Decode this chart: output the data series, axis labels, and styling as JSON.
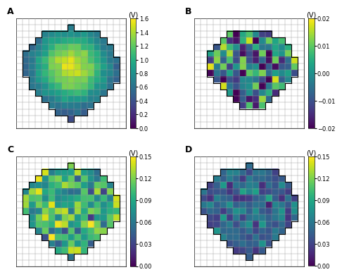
{
  "panel_labels": [
    "A",
    "B",
    "C",
    "D"
  ],
  "colorbar_labels": [
    "(V)",
    "(V)",
    "(V)",
    "(V)"
  ],
  "vranges": [
    [
      0,
      1.6
    ],
    [
      -0.02,
      0.02
    ],
    [
      0,
      0.15
    ],
    [
      0,
      0.15
    ]
  ],
  "grid_size": 17,
  "background_color": "white",
  "grid_color": "#888888",
  "tick_params_A": [
    0,
    0.2,
    0.4,
    0.6,
    0.8,
    1.0,
    1.2,
    1.4,
    1.6
  ],
  "tick_params_B": [
    -0.02,
    -0.01,
    0,
    0.01,
    0.02
  ],
  "tick_params_CD": [
    0,
    0.03,
    0.06,
    0.09,
    0.12,
    0.15
  ]
}
